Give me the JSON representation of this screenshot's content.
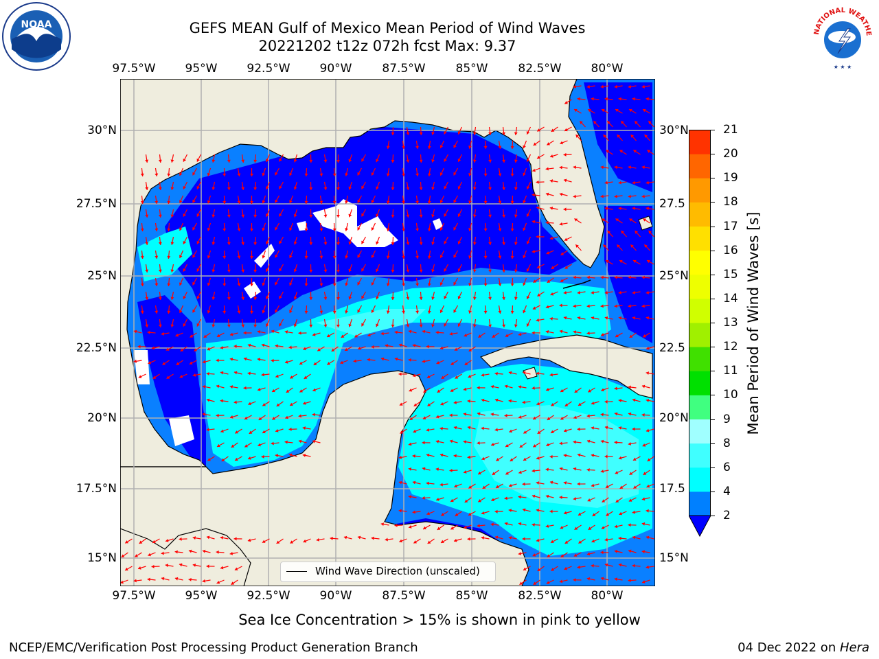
{
  "title": {
    "line1": "GEFS MEAN Gulf of Mexico Mean Period of Wind Waves",
    "line2": "20221202 t12z 072h fcst   Max: 9.37"
  },
  "logos": {
    "left": "NOAA",
    "left_ring": "NATIONAL OCEANIC AND ATMOSPHERIC ADMINISTRATION · U.S. DEPARTMENT OF COMMERCE",
    "right_ring": "NATIONAL WEATHER SERVICE"
  },
  "map": {
    "lon_ticks": [
      "97.5°W",
      "95°W",
      "92.5°W",
      "90°W",
      "87.5°W",
      "85°W",
      "82.5°W",
      "80°W"
    ],
    "lat_ticks_left": [
      "30°N",
      "27.5°N",
      "25°N",
      "22.5°N",
      "20°N",
      "17.5°N",
      "15°N"
    ],
    "lat_ticks_right": [
      "30°N",
      "27.5",
      "25°N",
      "22.5",
      "20°N",
      "17.5",
      "15°N"
    ],
    "legend_label": "Wind Wave Direction (unscaled)",
    "colors": {
      "land": "#efedde",
      "ocean_2_4": "#0a80ff",
      "ocean_lt2": "#0000ff",
      "ocean_4_6": "#00ffff",
      "ocean_6_8": "#40ffff",
      "missing": "#ffffff",
      "arrow": "#ff0000"
    }
  },
  "colorbar": {
    "label": "Mean Period of Wind Waves [s]",
    "ticks": [
      "2",
      "4",
      "6",
      "8",
      "9",
      "10",
      "11",
      "12",
      "13",
      "14",
      "15",
      "16",
      "17",
      "18",
      "19",
      "20",
      "21"
    ],
    "colors": [
      "#0080ff",
      "#00ffff",
      "#40ffff",
      "#a0ffff",
      "#40ff80",
      "#00e000",
      "#40e000",
      "#a0f000",
      "#d0ff00",
      "#eeff00",
      "#ffff00",
      "#ffe000",
      "#ffbb00",
      "#ff9900",
      "#ff6600",
      "#ff3300",
      "#ff0000"
    ],
    "extend_color": "#0000ff"
  },
  "subtitle": "Sea Ice Concentration > 15% is shown in pink to yellow",
  "footer": {
    "left": "NCEP/EMC/Verification Post Processing Product Generation Branch",
    "right_date": "04 Dec 2022 on ",
    "right_host": "Hera"
  }
}
